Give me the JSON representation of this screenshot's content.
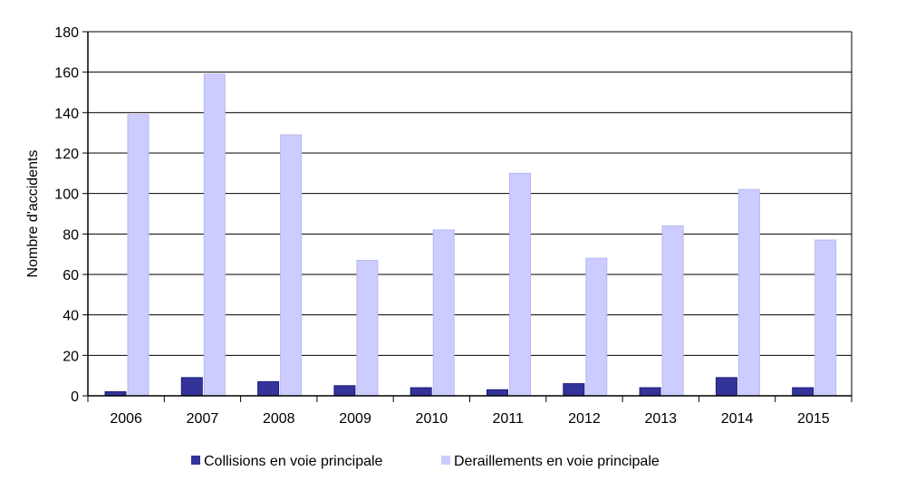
{
  "chart_data": {
    "type": "bar",
    "title": "",
    "xlabel": "",
    "ylabel": "Nombre d'accidents",
    "ylim": [
      0,
      180
    ],
    "yticks": [
      0,
      20,
      40,
      60,
      80,
      100,
      120,
      140,
      160,
      180
    ],
    "grid": true,
    "legend_position": "bottom",
    "categories": [
      "2006",
      "2007",
      "2008",
      "2009",
      "2010",
      "2011",
      "2012",
      "2013",
      "2014",
      "2015"
    ],
    "series": [
      {
        "name": "Collisions en voie principale",
        "color": "#333399",
        "values": [
          2,
          9,
          7,
          5,
          4,
          3,
          6,
          4,
          9,
          4
        ]
      },
      {
        "name": "Deraillements en voie principale",
        "color": "#ccccff",
        "values": [
          139,
          159,
          129,
          67,
          82,
          110,
          68,
          84,
          102,
          77
        ]
      }
    ]
  }
}
